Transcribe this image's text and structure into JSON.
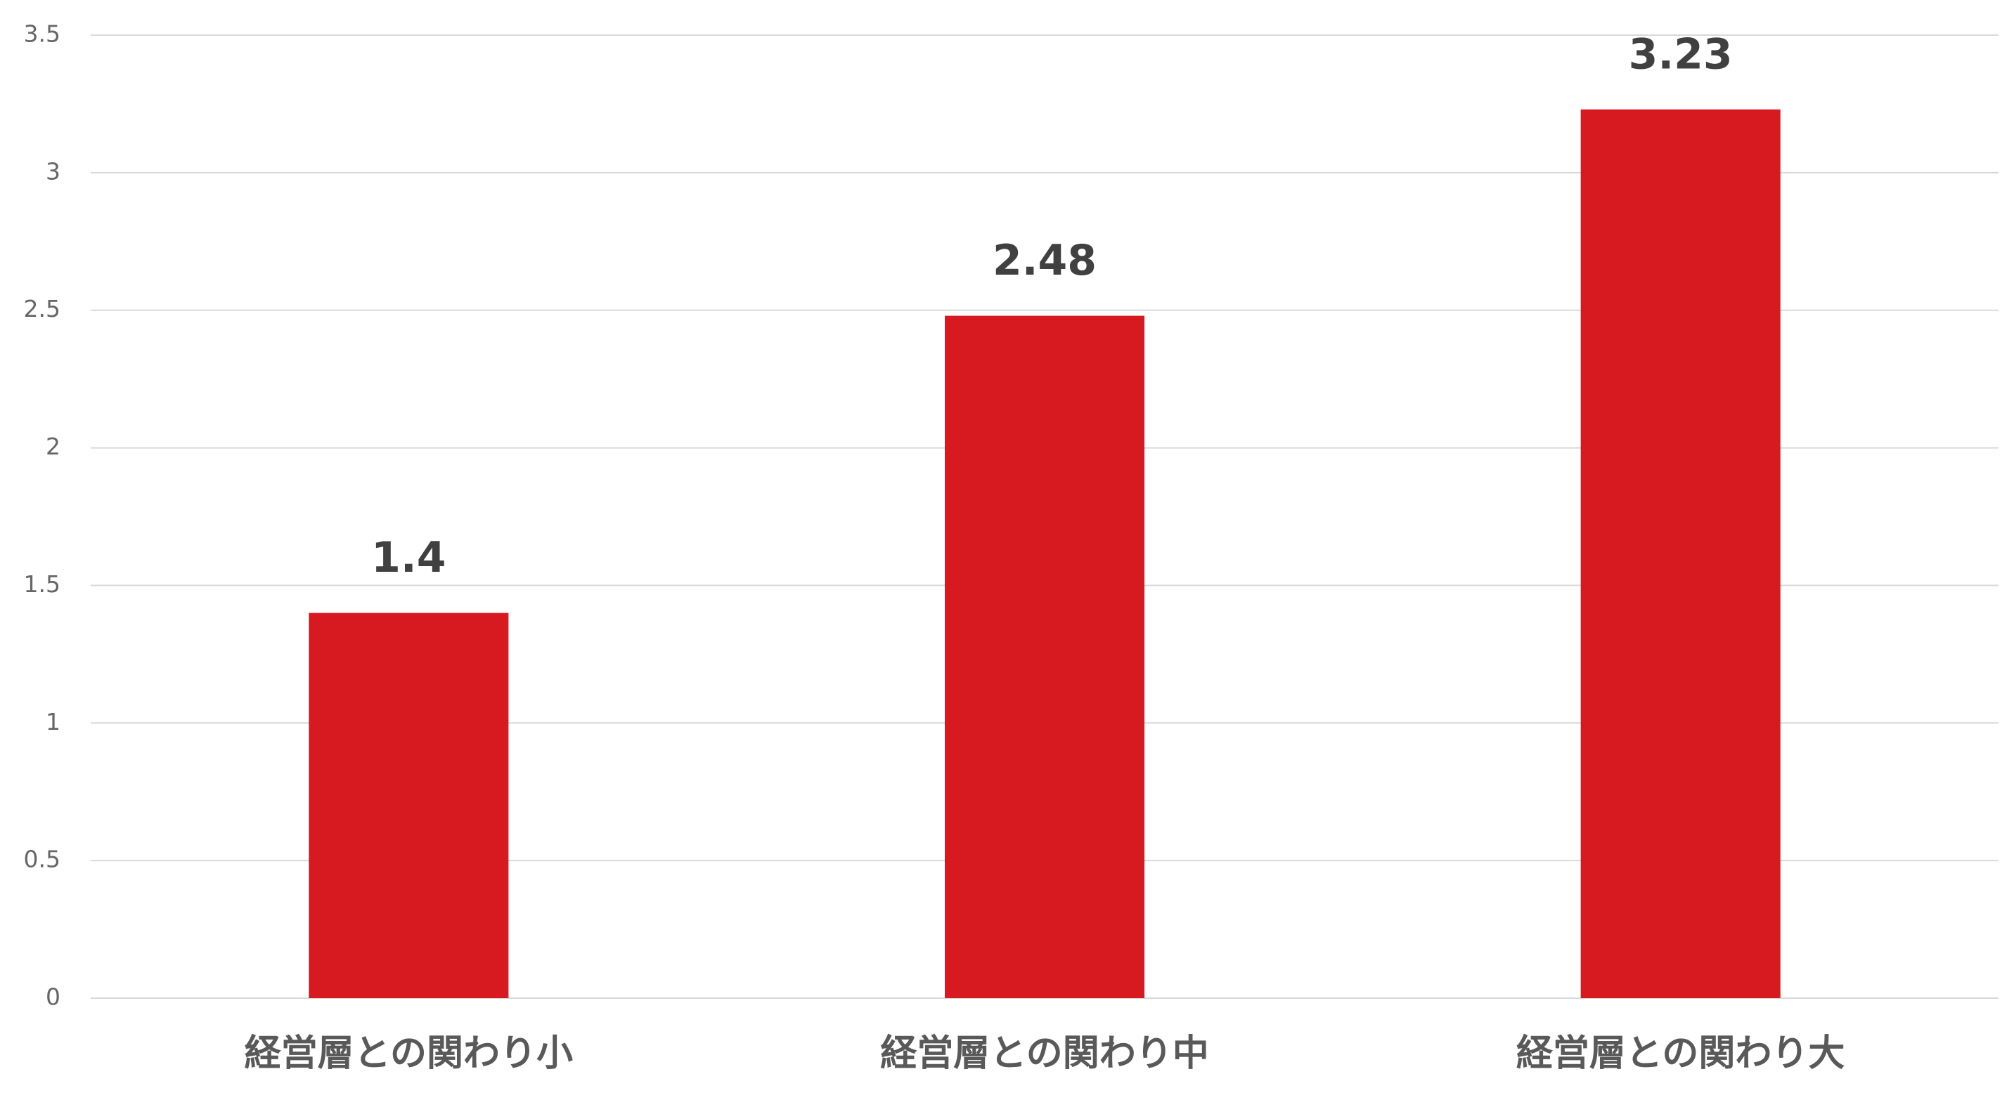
{
  "chart_data": {
    "type": "bar",
    "categories": [
      "経営層との関わり小",
      "経営層との関わり中",
      "経営層との関わり大"
    ],
    "values": [
      1.4,
      2.48,
      3.23
    ],
    "color": "#d71920",
    "ylim": [
      0,
      3.5
    ],
    "yticks": [
      0,
      0.5,
      1,
      1.5,
      2,
      2.5,
      3,
      3.5
    ],
    "grid": true
  }
}
